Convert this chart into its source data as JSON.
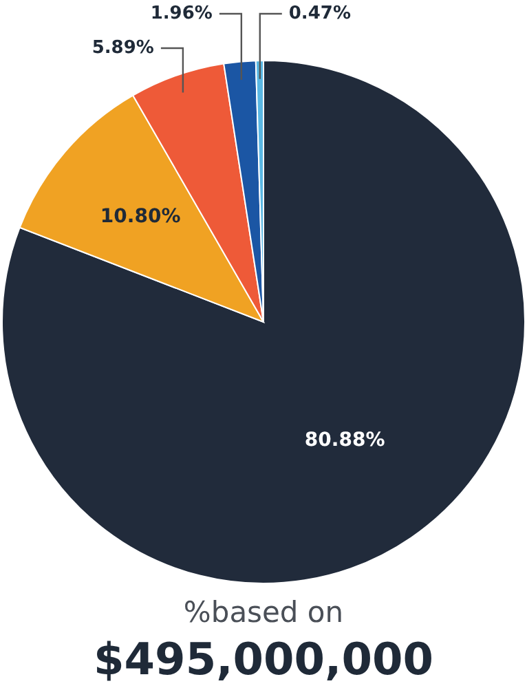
{
  "chart_data": {
    "type": "pie",
    "categories": [
      null,
      null,
      null,
      null,
      null
    ],
    "values": [
      80.88,
      10.8,
      5.89,
      1.96,
      0.47
    ],
    "colors": [
      "#212b3b",
      "#f0a223",
      "#ee5a38",
      "#1b56a4",
      "#5ab8e4"
    ],
    "value_labels": [
      "80.88%",
      "10.80%",
      "5.89%",
      "1.96%",
      "0.47%"
    ],
    "annotations": [
      "%based on",
      "$495,000,000"
    ]
  }
}
